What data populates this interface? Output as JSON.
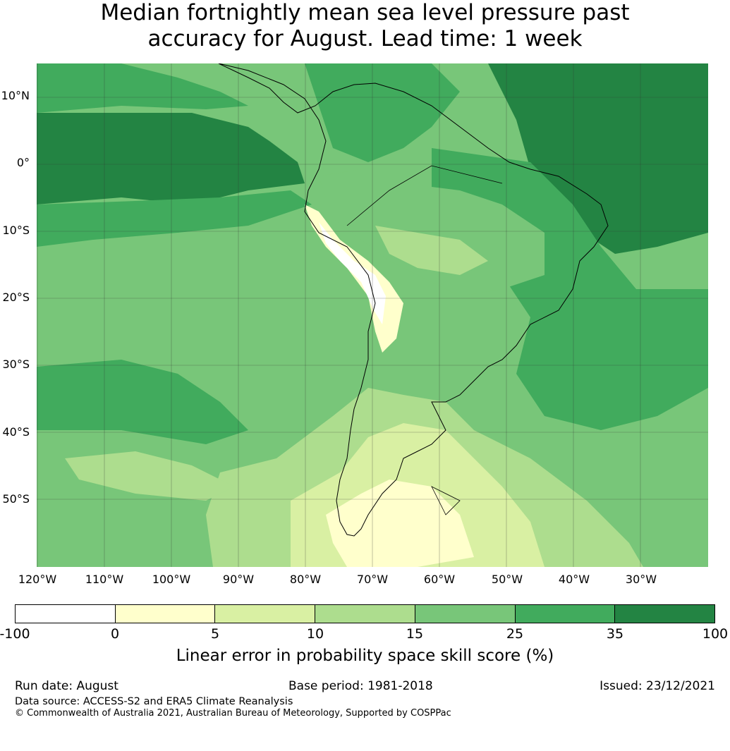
{
  "title": {
    "line1": "Median fortnightly mean sea level pressure past",
    "line2": "accuracy for August. Lead time: 1 week"
  },
  "map": {
    "region": "South America",
    "lat_labels": [
      "10°N",
      "0°",
      "10°S",
      "20°S",
      "30°S",
      "40°S",
      "50°S"
    ],
    "lon_labels": [
      "120°W",
      "110°W",
      "100°W",
      "90°W",
      "80°W",
      "70°W",
      "60°W",
      "50°W",
      "40°W",
      "30°W"
    ]
  },
  "colorbar": {
    "ticks": [
      "-100",
      "0",
      "5",
      "10",
      "15",
      "25",
      "35",
      "100"
    ],
    "colors": [
      "#ffffff",
      "#ffffcc",
      "#d9f0a3",
      "#addd8e",
      "#78c679",
      "#41ab5d",
      "#238443"
    ],
    "label": "Linear error in probability space skill score (%)"
  },
  "footer": {
    "run_date": "Run date: August",
    "base_period": "Base period: 1981-2018",
    "issued": "Issued: 23/12/2021",
    "data_source": "Data source: ACCESS-S2 and ERA5 Climate Reanalysis",
    "copyright": "© Commonwealth of Australia 2021, Australian Bureau of Meteorology, Supported by COSPPac"
  }
}
